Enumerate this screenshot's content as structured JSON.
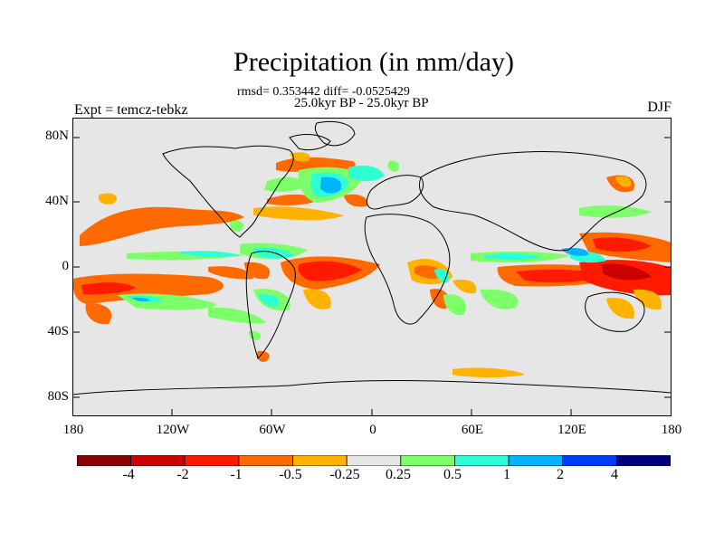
{
  "title": "Precipitation (in mm/day)",
  "stats": "rmsd= 0.353442  diff= -0.0525429",
  "period": "25.0kyr BP - 25.0kyr BP",
  "expt": "Expt = temcz-tebkz",
  "season": "DJF",
  "y_axis_labels": [
    "80N",
    "40N",
    "0",
    "40S",
    "80S"
  ],
  "x_axis_labels": [
    "180",
    "120W",
    "60W",
    "0",
    "60E",
    "120E",
    "180"
  ],
  "colorbar": {
    "labels": [
      "-4",
      "-2",
      "-1",
      "-0.5",
      "-0.25",
      "0.25",
      "0.5",
      "1",
      "2",
      "4"
    ],
    "colors": [
      "#8b0000",
      "#cc0000",
      "#ff1a00",
      "#ff6a00",
      "#ffb300",
      "#e6e6e6",
      "#7dff6a",
      "#2effd2",
      "#00b4ff",
      "#0039ff",
      "#00007a"
    ]
  },
  "colors": {
    "land_background": "#e6e6e6",
    "coastline": "#000000"
  }
}
